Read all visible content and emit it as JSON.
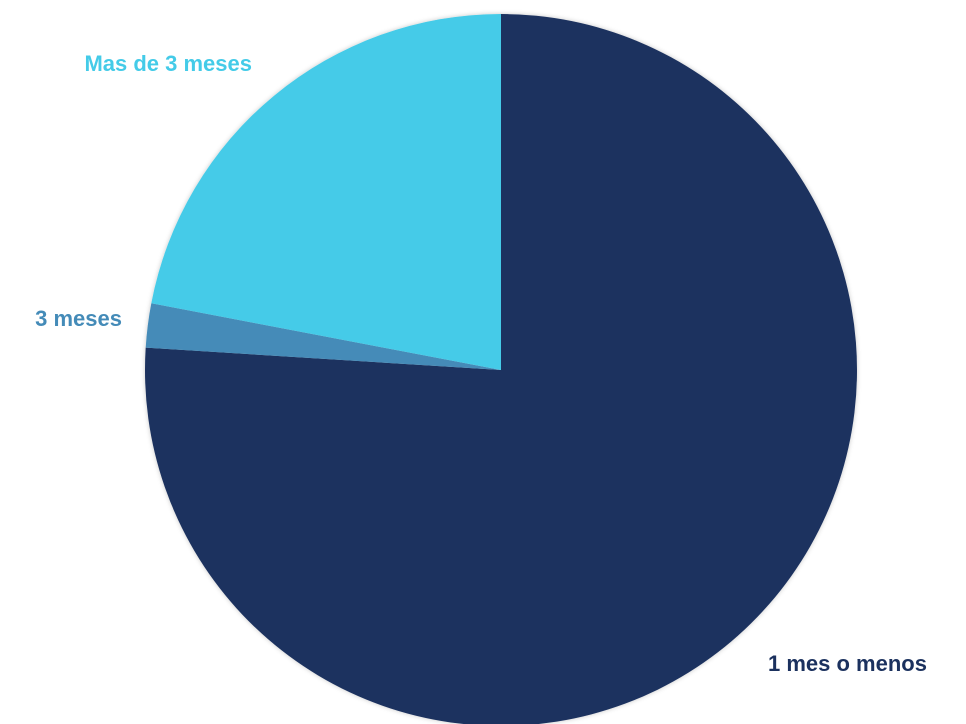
{
  "chart_data": {
    "type": "pie",
    "title": "",
    "legend": "none",
    "start_angle_deg": 0,
    "direction": "clockwise",
    "slices": [
      {
        "label": "1 mes o menos",
        "value": 76,
        "color": "#1b315e",
        "label_color": "#1b315e"
      },
      {
        "label": "3 meses",
        "value": 2,
        "color": "#448bb8",
        "label_color": "#448bb8"
      },
      {
        "label": "Mas de 3 meses",
        "value": 22,
        "color": "#44cbe8",
        "label_color": "#44cbe8"
      }
    ]
  }
}
